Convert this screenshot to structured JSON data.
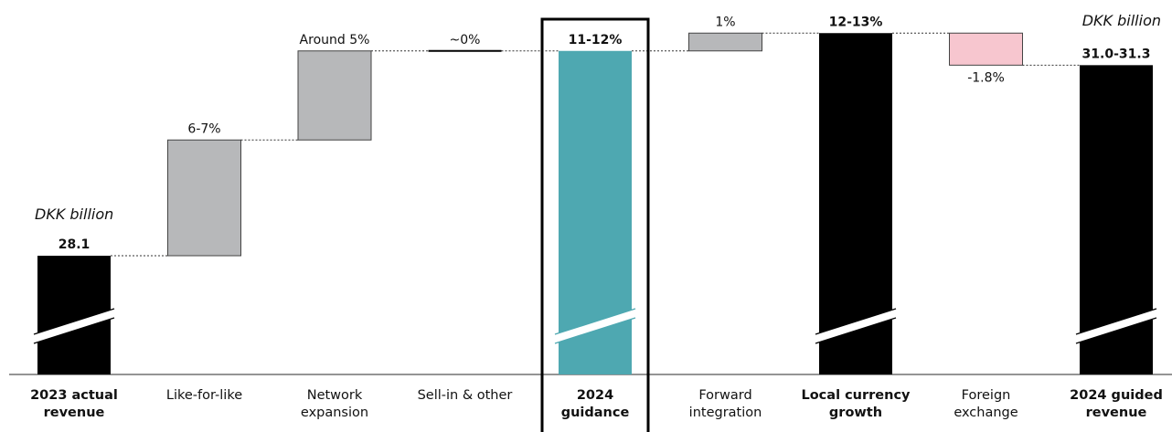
{
  "chart_data": {
    "type": "bar",
    "subtype": "waterfall",
    "unit_label": "DKK billion",
    "categories": [
      {
        "lines": [
          "2023 actual",
          "revenue"
        ],
        "bold": true
      },
      {
        "lines": [
          "Like-for-like"
        ],
        "bold": false
      },
      {
        "lines": [
          "Network",
          "expansion"
        ],
        "bold": false
      },
      {
        "lines": [
          "Sell-in & other"
        ],
        "bold": false
      },
      {
        "lines": [
          "2024",
          "guidance"
        ],
        "bold": true
      },
      {
        "lines": [
          "Forward",
          "integration"
        ],
        "bold": false
      },
      {
        "lines": [
          "Local currency",
          "growth"
        ],
        "bold": true
      },
      {
        "lines": [
          "Foreign",
          "exchange"
        ],
        "bold": false
      },
      {
        "lines": [
          "2024 guided",
          "revenue"
        ],
        "bold": true
      }
    ],
    "bars": [
      {
        "kind": "total",
        "start_pct": 0,
        "end_pct": 0,
        "label": "28.1",
        "color": "#000000",
        "axis_break": true
      },
      {
        "kind": "step",
        "start_pct": 0,
        "end_pct": 6.5,
        "label": "6-7%",
        "color": "#b7b8ba"
      },
      {
        "kind": "step",
        "start_pct": 6.5,
        "end_pct": 11.5,
        "label": "Around 5%",
        "color": "#b7b8ba"
      },
      {
        "kind": "step",
        "start_pct": 11.5,
        "end_pct": 11.5,
        "label": "~0%",
        "color": "#000000"
      },
      {
        "kind": "total",
        "start_pct": 0,
        "end_pct": 11.5,
        "label": "11-12%",
        "color": "#4ea8b1",
        "axis_break": true,
        "highlight": true
      },
      {
        "kind": "step",
        "start_pct": 11.5,
        "end_pct": 12.5,
        "label": "1%",
        "color": "#b7b8ba"
      },
      {
        "kind": "total",
        "start_pct": 0,
        "end_pct": 12.5,
        "label": "12-13%",
        "color": "#000000",
        "axis_break": true
      },
      {
        "kind": "step",
        "start_pct": 12.5,
        "end_pct": 10.7,
        "label": "-1.8%",
        "color": "#f7c6cf"
      },
      {
        "kind": "total",
        "start_pct": 0,
        "end_pct": 10.7,
        "label": "31.0-31.3",
        "color": "#000000",
        "axis_break": true
      }
    ]
  }
}
